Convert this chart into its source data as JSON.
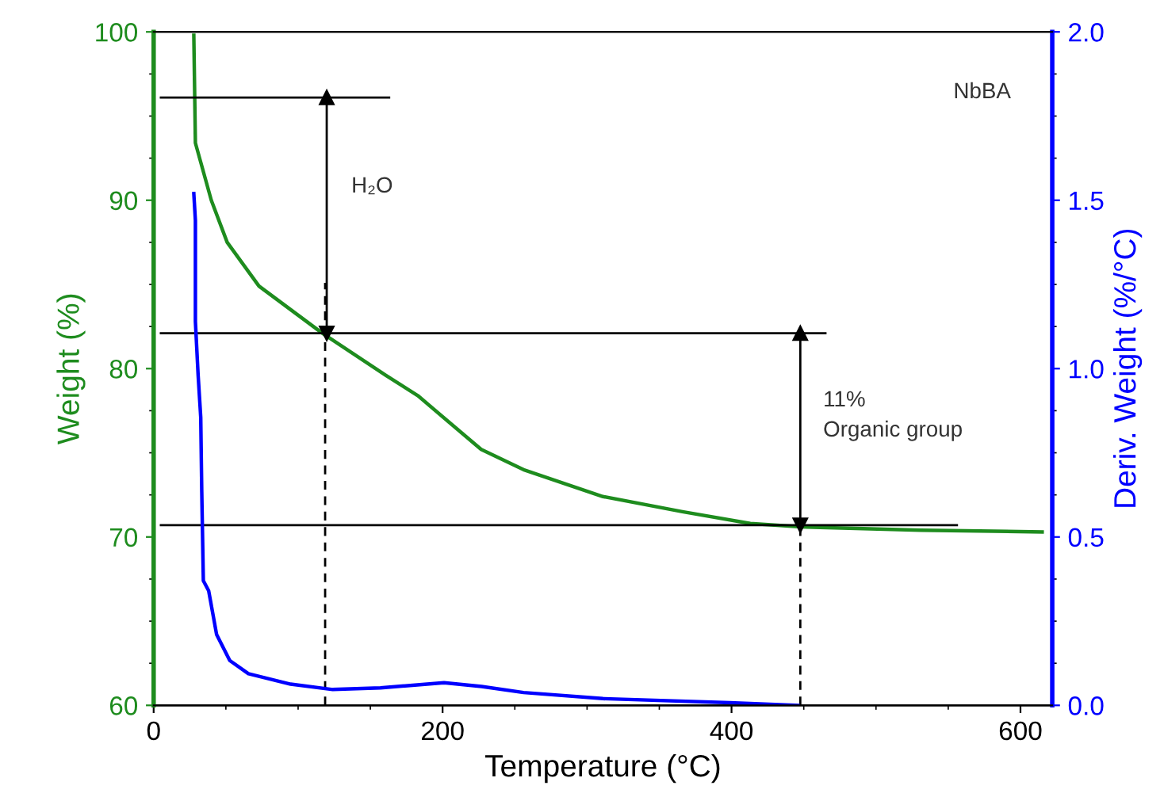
{
  "chart_data": {
    "type": "line",
    "xlabel": "Temperature (°C)",
    "ylabel": "Weight (%)",
    "y2label": "Deriv. Weight (%/°C)",
    "xlim": [
      0,
      622
    ],
    "xticks": [
      0,
      200,
      400,
      600
    ],
    "ylim": [
      60,
      100
    ],
    "yticks": [
      60,
      70,
      80,
      90,
      100
    ],
    "y2lim": [
      0,
      2.0
    ],
    "y2ticks": [
      {
        "value": 0,
        "label": "0.0"
      },
      0.5,
      {
        "value": 1,
        "label": "1.0"
      },
      1.5,
      {
        "value": 2,
        "label": "2.0"
      }
    ],
    "grid": false,
    "legend": false,
    "line_style": "solid",
    "series": [
      {
        "color": "#1e8c1e",
        "x": [
          27.8,
          28.9,
          39.9,
          50.9,
          72.9,
          116.8,
          160.8,
          182.8,
          204.7,
          226.7,
          256,
          311,
          366,
          413,
          448,
          531,
          615
        ],
        "values": [
          99.8,
          93.4,
          90.0,
          87.5,
          84.9,
          82.1,
          79.6,
          78.4,
          76.8,
          75.2,
          74.0,
          72.4,
          71.5,
          70.8,
          70.6,
          70.4,
          70.3
        ]
      },
      {
        "color": "#0000ff",
        "axis": "y2",
        "x": [
          27.8,
          28.9,
          28.9,
          30.8,
          32.6,
          33.3,
          34.4,
          38.1,
          43.6,
          52.7,
          65.6,
          94.8,
          124,
          157,
          201,
          227,
          256,
          311,
          399,
          446
        ],
        "values": [
          1.52,
          1.44,
          1.14,
          0.98,
          0.855,
          0.635,
          0.37,
          0.34,
          0.21,
          0.133,
          0.094,
          0.063,
          0.047,
          0.052,
          0.067,
          0.056,
          0.038,
          0.02,
          0.008,
          0.0
        ]
      },
      {
        "color": "#000000",
        "x": [
          5,
          163
        ],
        "values": [
          96.1,
          96.1
        ]
      },
      {
        "color": "#000000",
        "x": [
          5,
          465
        ],
        "values": [
          82.1,
          82.1
        ]
      },
      {
        "color": "#000000",
        "x": [
          5,
          556
        ],
        "values": [
          70.7,
          70.7
        ]
      },
      {
        "color": "#000000",
        "line_style": "dashed",
        "x": [
          118.7,
          118.7
        ],
        "values": [
          60,
          85.1
        ]
      },
      {
        "color": "#000000",
        "line_style": "dashed",
        "x": [
          447.6,
          447.6
        ],
        "values": [
          60,
          70.7
        ]
      },
      {
        "color": "#000000",
        "marker": "triangle",
        "x": [
          119.8,
          119.8
        ],
        "values": [
          96.1,
          82.1
        ]
      },
      {
        "color": "#000000",
        "marker": "triangle",
        "x": [
          447.6,
          447.6
        ],
        "values": [
          82.1,
          70.7
        ]
      }
    ],
    "annotations": [
      "NbBA",
      "H₂O",
      "11%\nOrganic group"
    ]
  }
}
